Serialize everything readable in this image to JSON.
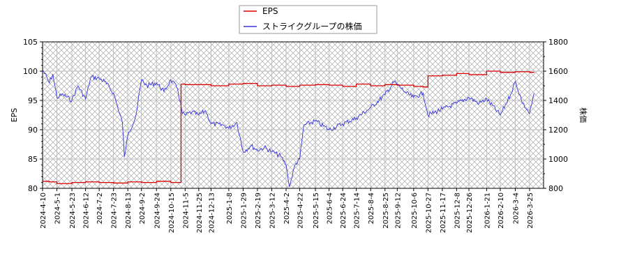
{
  "chart_data": {
    "type": "line",
    "title": "",
    "legend": {
      "position": "top-center",
      "entries": [
        {
          "label": "EPS",
          "color": "#dd0000"
        },
        {
          "label": "ストライクグループの株価",
          "color": "#3333dd"
        }
      ]
    },
    "xlabel": "",
    "ylabel_left": "EPS",
    "ylabel_right": "株価",
    "ylim_left": [
      80,
      105
    ],
    "ylim_right": [
      800,
      1800
    ],
    "yticks_left": [
      80,
      85,
      90,
      95,
      100,
      105
    ],
    "yticks_right": [
      800,
      1000,
      1200,
      1400,
      1600,
      1800
    ],
    "grid": true,
    "background_pattern": "crosshatch",
    "xtick_labels": [
      "2024-4-10",
      "2024-5-1",
      "2024-5-23",
      "2024-6-12",
      "2024-7-2",
      "2024-7-23",
      "2024-8-13",
      "2024-9-2",
      "2024-9-24",
      "2024-10-15",
      "2024-11-5",
      "2024-11-25",
      "2024-12-13",
      "2025-1-8",
      "2025-1-29",
      "2025-2-19",
      "2025-3-12",
      "2025-4-2",
      "2025-4-22",
      "2025-5-15",
      "2025-6-4",
      "2025-6-24",
      "2025-7-14",
      "2025-8-4",
      "2025-8-25",
      "2025-9-12",
      "2025-10-6",
      "2025-10-27",
      "2025-11-17",
      "2025-12-8",
      "2025-12-26",
      "2026-1-21",
      "2026-2-10",
      "2026-3-4",
      "2026-3-25"
    ],
    "series": [
      {
        "name": "EPS",
        "axis": "left",
        "color": "#dd0000",
        "points": [
          [
            "2024-4-10",
            81.2
          ],
          [
            "2024-4-20",
            81.1
          ],
          [
            "2024-5-1",
            80.8
          ],
          [
            "2024-5-23",
            81.0
          ],
          [
            "2024-6-12",
            81.1
          ],
          [
            "2024-7-2",
            81.0
          ],
          [
            "2024-7-23",
            80.9
          ],
          [
            "2024-8-13",
            81.1
          ],
          [
            "2024-9-2",
            81.0
          ],
          [
            "2024-9-24",
            81.2
          ],
          [
            "2024-10-15",
            81.0
          ],
          [
            "2024-10-28",
            81.0
          ],
          [
            "2024-10-30",
            97.8
          ],
          [
            "2024-11-5",
            97.7
          ],
          [
            "2024-11-25",
            97.7
          ],
          [
            "2024-12-13",
            97.5
          ],
          [
            "2025-1-8",
            97.8
          ],
          [
            "2025-1-29",
            97.9
          ],
          [
            "2025-2-19",
            97.5
          ],
          [
            "2025-3-12",
            97.6
          ],
          [
            "2025-4-2",
            97.4
          ],
          [
            "2025-4-22",
            97.6
          ],
          [
            "2025-5-15",
            97.7
          ],
          [
            "2025-6-4",
            97.6
          ],
          [
            "2025-6-24",
            97.4
          ],
          [
            "2025-7-14",
            97.8
          ],
          [
            "2025-8-4",
            97.5
          ],
          [
            "2025-8-25",
            97.7
          ],
          [
            "2025-9-12",
            97.6
          ],
          [
            "2025-10-6",
            97.4
          ],
          [
            "2025-10-20",
            97.3
          ],
          [
            "2025-10-27",
            99.2
          ],
          [
            "2025-11-17",
            99.3
          ],
          [
            "2025-12-8",
            99.6
          ],
          [
            "2025-12-26",
            99.4
          ],
          [
            "2026-1-21",
            100.0
          ],
          [
            "2026-2-10",
            99.8
          ],
          [
            "2026-3-4",
            99.9
          ],
          [
            "2026-3-25",
            99.8
          ],
          [
            "2026-4-1",
            99.8
          ]
        ]
      },
      {
        "name": "ストライクグループの株価",
        "axis": "right",
        "color": "#3333dd",
        "points": [
          [
            "2024-4-10",
            1610
          ],
          [
            "2024-4-20",
            1520
          ],
          [
            "2024-4-25",
            1580
          ],
          [
            "2024-5-1",
            1420
          ],
          [
            "2024-5-10",
            1440
          ],
          [
            "2024-5-23",
            1400
          ],
          [
            "2024-6-1",
            1500
          ],
          [
            "2024-6-12",
            1410
          ],
          [
            "2024-6-20",
            1560
          ],
          [
            "2024-7-2",
            1550
          ],
          [
            "2024-7-10",
            1530
          ],
          [
            "2024-7-23",
            1450
          ],
          [
            "2024-8-5",
            1250
          ],
          [
            "2024-8-8",
            1015
          ],
          [
            "2024-8-13",
            1160
          ],
          [
            "2024-8-25",
            1300
          ],
          [
            "2024-9-2",
            1540
          ],
          [
            "2024-9-10",
            1500
          ],
          [
            "2024-9-24",
            1520
          ],
          [
            "2024-10-5",
            1460
          ],
          [
            "2024-10-15",
            1540
          ],
          [
            "2024-10-25",
            1480
          ],
          [
            "2024-11-1",
            1310
          ],
          [
            "2024-11-5",
            1300
          ],
          [
            "2024-11-15",
            1320
          ],
          [
            "2024-11-25",
            1300
          ],
          [
            "2024-12-5",
            1330
          ],
          [
            "2024-12-13",
            1240
          ],
          [
            "2025-1-1",
            1230
          ],
          [
            "2025-1-8",
            1210
          ],
          [
            "2025-1-20",
            1250
          ],
          [
            "2025-1-29",
            1050
          ],
          [
            "2025-2-10",
            1090
          ],
          [
            "2025-2-19",
            1060
          ],
          [
            "2025-3-1",
            1080
          ],
          [
            "2025-3-12",
            1050
          ],
          [
            "2025-3-25",
            1020
          ],
          [
            "2025-4-2",
            960
          ],
          [
            "2025-4-7",
            810
          ],
          [
            "2025-4-15",
            960
          ],
          [
            "2025-4-22",
            1000
          ],
          [
            "2025-4-28",
            1230
          ],
          [
            "2025-5-15",
            1260
          ],
          [
            "2025-6-4",
            1200
          ],
          [
            "2025-6-24",
            1240
          ],
          [
            "2025-7-14",
            1280
          ],
          [
            "2025-8-4",
            1350
          ],
          [
            "2025-8-25",
            1440
          ],
          [
            "2025-9-8",
            1530
          ],
          [
            "2025-9-12",
            1510
          ],
          [
            "2025-9-25",
            1450
          ],
          [
            "2025-10-6",
            1420
          ],
          [
            "2025-10-20",
            1450
          ],
          [
            "2025-10-27",
            1300
          ],
          [
            "2025-11-17",
            1340
          ],
          [
            "2025-12-8",
            1380
          ],
          [
            "2025-12-26",
            1420
          ],
          [
            "2026-1-10",
            1380
          ],
          [
            "2026-1-21",
            1410
          ],
          [
            "2026-2-10",
            1300
          ],
          [
            "2026-2-25",
            1440
          ],
          [
            "2026-3-4",
            1530
          ],
          [
            "2026-3-15",
            1380
          ],
          [
            "2026-3-25",
            1310
          ],
          [
            "2026-4-1",
            1450
          ]
        ]
      }
    ]
  }
}
